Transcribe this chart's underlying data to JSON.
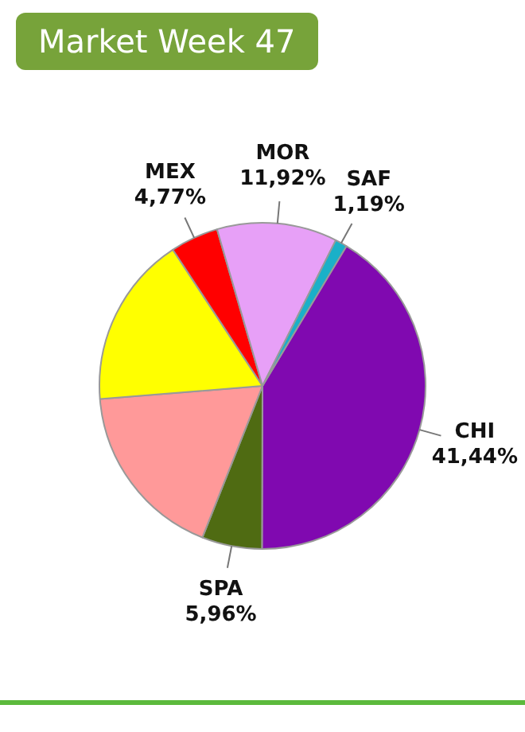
{
  "chart_data": {
    "type": "pie",
    "title": "Market Week 47",
    "categories": [
      "CHI",
      "SPA",
      null,
      null,
      "MEX",
      "MOR",
      "SAF"
    ],
    "values": [
      41.44,
      5.96,
      17.7,
      17.02,
      4.77,
      11.92,
      1.19
    ],
    "value_labels": [
      "41,44%",
      "5,96%",
      null,
      null,
      "4,77%",
      "11,92%",
      "1,19%"
    ],
    "colors": [
      "#8009b0",
      "#4f6b12",
      "#ff9999",
      "#ffff00",
      "#ff0000",
      "#e7a0f7",
      "#1ab0c8"
    ],
    "legend": false
  }
}
